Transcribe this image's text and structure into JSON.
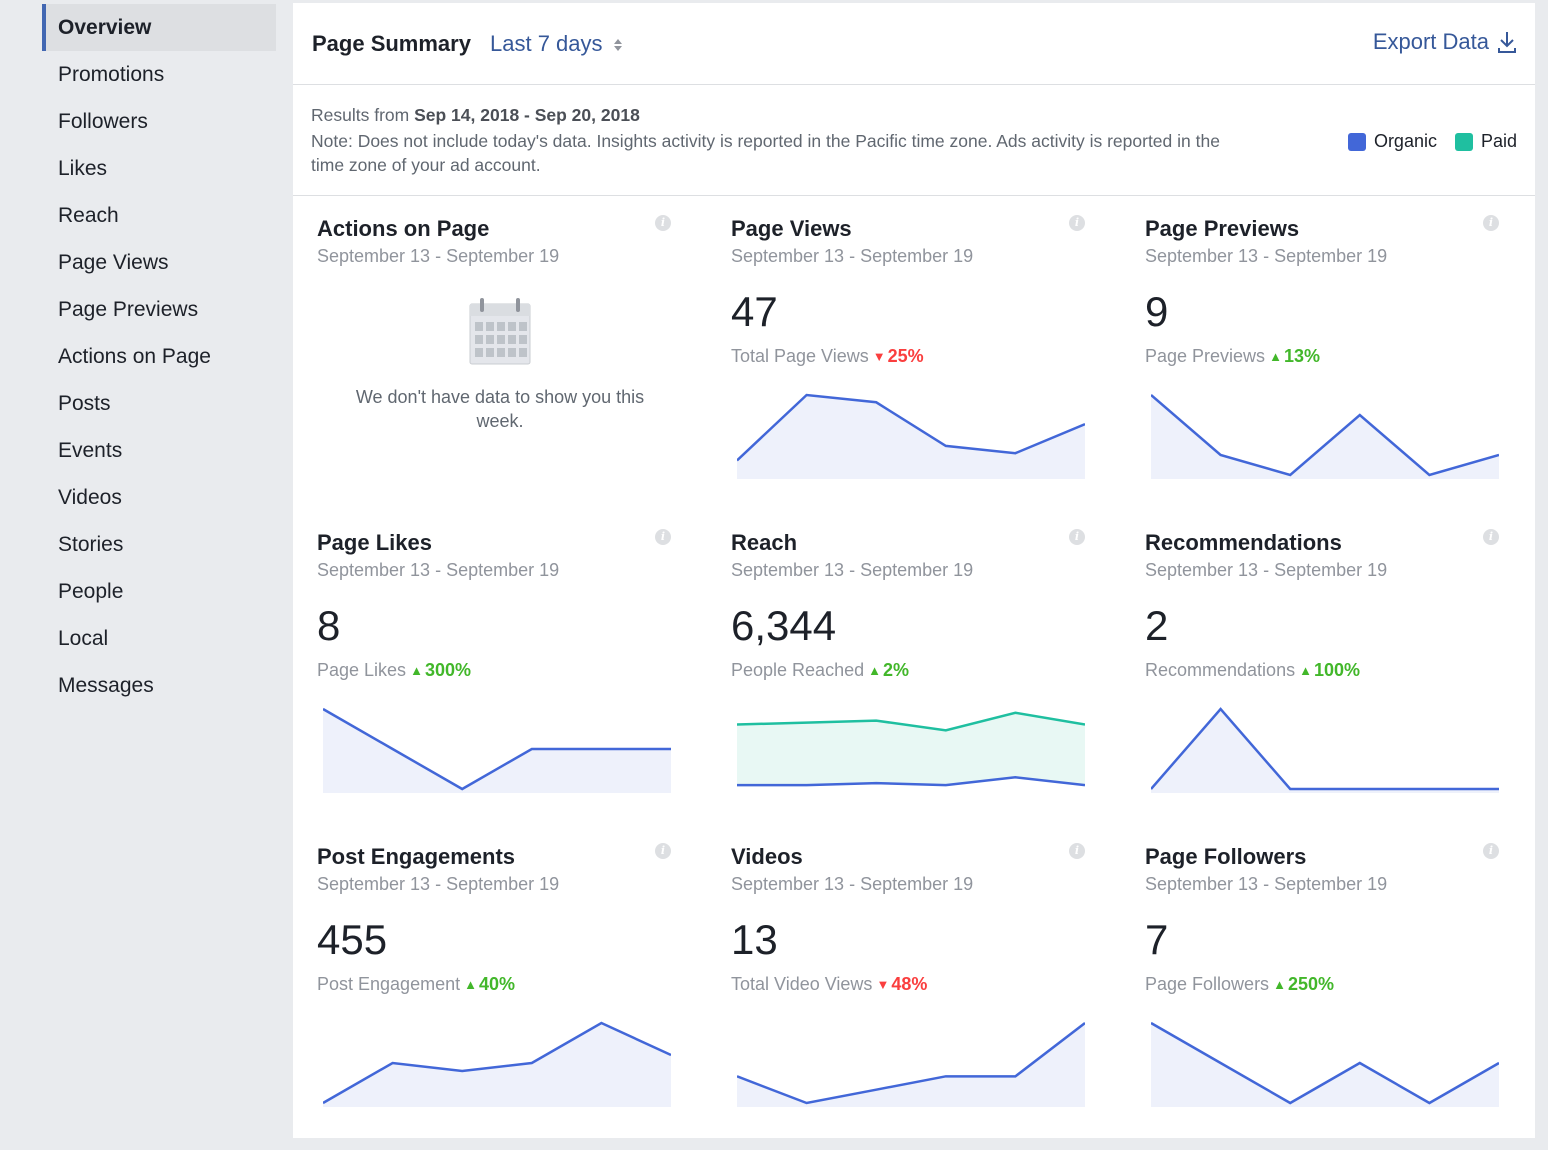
{
  "sidebar": {
    "items": [
      {
        "label": "Overview",
        "active": true
      },
      {
        "label": "Promotions"
      },
      {
        "label": "Followers"
      },
      {
        "label": "Likes"
      },
      {
        "label": "Reach"
      },
      {
        "label": "Page Views"
      },
      {
        "label": "Page Previews"
      },
      {
        "label": "Actions on Page"
      },
      {
        "label": "Posts"
      },
      {
        "label": "Events"
      },
      {
        "label": "Videos"
      },
      {
        "label": "Stories"
      },
      {
        "label": "People"
      },
      {
        "label": "Local"
      },
      {
        "label": "Messages"
      }
    ]
  },
  "header": {
    "title": "Page Summary",
    "range": "Last 7 days",
    "export_label": "Export Data"
  },
  "notebar": {
    "results_prefix": "Results from",
    "results_range": "Sep 14, 2018 - Sep 20, 2018",
    "note": "Note: Does not include today's data. Insights activity is reported in the Pacific time zone. Ads activity is reported in the time zone of your ad account.",
    "legend": [
      {
        "label": "Organic",
        "color": "#4267d8"
      },
      {
        "label": "Paid",
        "color": "#1fbfa0"
      }
    ]
  },
  "colors": {
    "organic_line": "#4267d8",
    "organic_fill": "#eef1fb",
    "paid_line": "#1fbfa0",
    "paid_fill": "#e8f8f4"
  },
  "cards": [
    {
      "title": "Actions on Page",
      "dates": "September 13 - September 19",
      "empty": true,
      "empty_text": "We don't have data to show you this week."
    },
    {
      "title": "Page Views",
      "dates": "September 13 - September 19",
      "value": "47",
      "sub_label": "Total Page Views",
      "trend": "down",
      "change": "25%",
      "organic": [
        2,
        11,
        10,
        4,
        3,
        7
      ]
    },
    {
      "title": "Page Previews",
      "dates": "September 13 - September 19",
      "value": "9",
      "sub_label": "Page Previews",
      "trend": "up",
      "change": "13%",
      "organic": [
        4,
        1,
        0,
        3,
        0,
        1
      ]
    },
    {
      "title": "Page Likes",
      "dates": "September 13 - September 19",
      "value": "8",
      "sub_label": "Page Likes",
      "trend": "up",
      "change": "300%",
      "organic": [
        2,
        1,
        0,
        1,
        1,
        1
      ]
    },
    {
      "title": "Reach",
      "dates": "September 13 - September 19",
      "value": "6,344",
      "sub_label": "People Reached",
      "trend": "up",
      "change": "2%",
      "organic": [
        2,
        2,
        3,
        2,
        6,
        2
      ],
      "paid": [
        33,
        34,
        35,
        30,
        39,
        33
      ]
    },
    {
      "title": "Recommendations",
      "dates": "September 13 - September 19",
      "value": "2",
      "sub_label": "Recommendations",
      "trend": "up",
      "change": "100%",
      "organic": [
        0,
        1,
        0,
        0,
        0,
        0
      ]
    },
    {
      "title": "Post Engagements",
      "dates": "September 13 - September 19",
      "value": "455",
      "sub_label": "Post Engagement",
      "trend": "up",
      "change": "40%",
      "organic": [
        0,
        5,
        4,
        5,
        10,
        6
      ]
    },
    {
      "title": "Videos",
      "dates": "September 13 - September 19",
      "value": "13",
      "sub_label": "Total Video Views",
      "trend": "down",
      "change": "48%",
      "organic": [
        1,
        0,
        0.5,
        1,
        1,
        3
      ]
    },
    {
      "title": "Page Followers",
      "dates": "September 13 - September 19",
      "value": "7",
      "sub_label": "Page Followers",
      "trend": "up",
      "change": "250%",
      "organic": [
        3,
        1.5,
        0,
        1.5,
        0,
        1.5
      ]
    }
  ]
}
